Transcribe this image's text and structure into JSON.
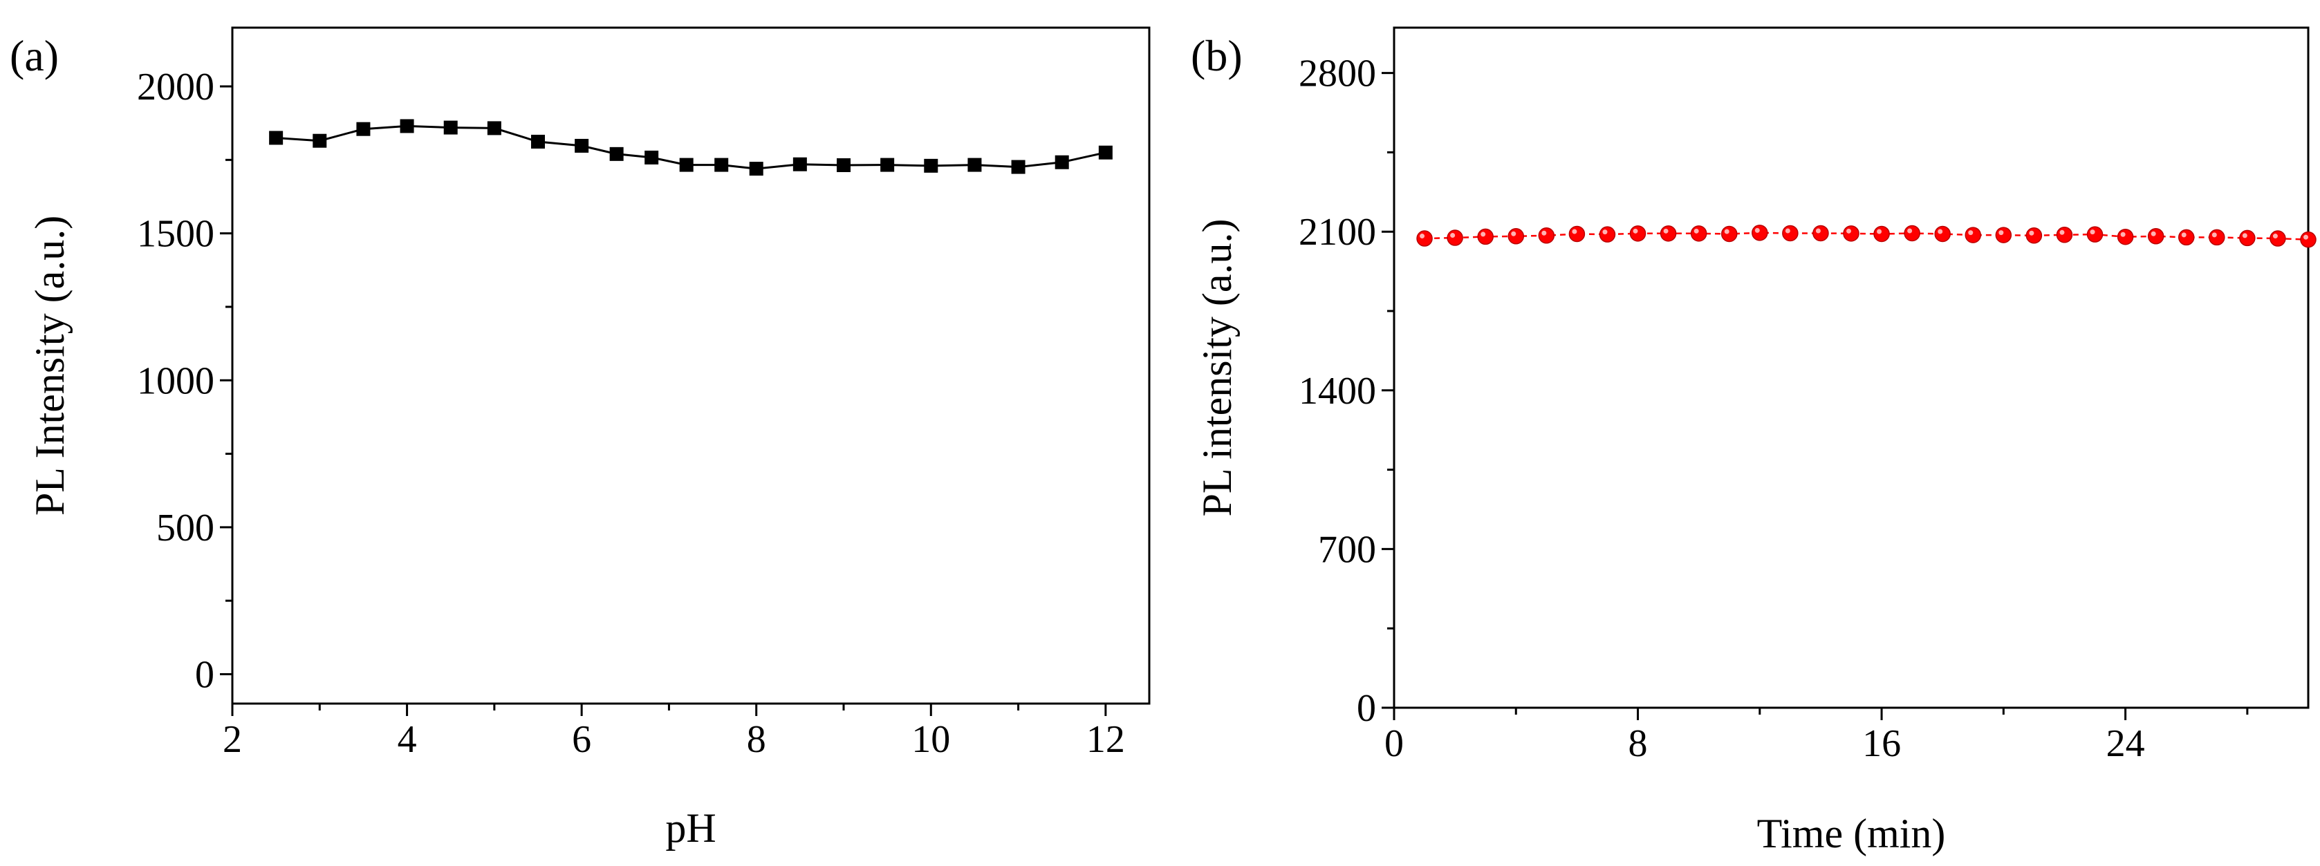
{
  "chart_data": [
    {
      "panel_label": "(a)",
      "type": "line",
      "xlabel": "pH",
      "ylabel": "PL Intensity (a.u.)",
      "xlim": [
        2,
        12.5
      ],
      "ylim": [
        -100,
        2200
      ],
      "xticks": [
        2,
        4,
        6,
        8,
        10,
        12
      ],
      "yticks": [
        0,
        500,
        1000,
        1500,
        2000
      ],
      "xtick_labels": [
        "2",
        "4",
        "6",
        "8",
        "10",
        "12"
      ],
      "ytick_labels": [
        "0",
        "500",
        "1000",
        "1500",
        "2000"
      ],
      "series": [
        {
          "name": "PL Intensity",
          "marker": "square",
          "line": "solid",
          "color": "#000000",
          "x": [
            2.5,
            3,
            3.5,
            4,
            4.5,
            5,
            5.5,
            6,
            6.4,
            6.8,
            7.2,
            7.6,
            8,
            8.5,
            9,
            9.5,
            10,
            10.5,
            11,
            11.5,
            12
          ],
          "y": [
            1825,
            1815,
            1855,
            1865,
            1860,
            1858,
            1812,
            1798,
            1770,
            1758,
            1733,
            1733,
            1720,
            1735,
            1732,
            1733,
            1730,
            1733,
            1726,
            1742,
            1775
          ]
        }
      ]
    },
    {
      "panel_label": "(b)",
      "type": "line",
      "xlabel": "Time (min)",
      "ylabel": "PL intensity (a.u.)",
      "xlim": [
        0,
        30
      ],
      "ylim": [
        0,
        3000
      ],
      "xticks": [
        0,
        8,
        16,
        24
      ],
      "yticks": [
        0,
        700,
        1400,
        2100,
        2800
      ],
      "xtick_labels": [
        "0",
        "8",
        "16",
        "24"
      ],
      "ytick_labels": [
        "0",
        "700",
        "1400",
        "2100",
        "2800"
      ],
      "series": [
        {
          "name": "PL intensity",
          "marker": "circle",
          "line": "dashed",
          "color": "#ff0000",
          "x": [
            1,
            2,
            3,
            4,
            5,
            6,
            7,
            8,
            9,
            10,
            11,
            12,
            13,
            14,
            15,
            16,
            17,
            18,
            19,
            20,
            21,
            22,
            23,
            24,
            25,
            26,
            27,
            28,
            29,
            30
          ],
          "y": [
            2070,
            2073,
            2078,
            2080,
            2083,
            2090,
            2088,
            2092,
            2092,
            2092,
            2090,
            2095,
            2093,
            2093,
            2092,
            2090,
            2093,
            2090,
            2085,
            2085,
            2083,
            2086,
            2088,
            2077,
            2080,
            2075,
            2075,
            2072,
            2070,
            2065
          ]
        }
      ]
    }
  ]
}
